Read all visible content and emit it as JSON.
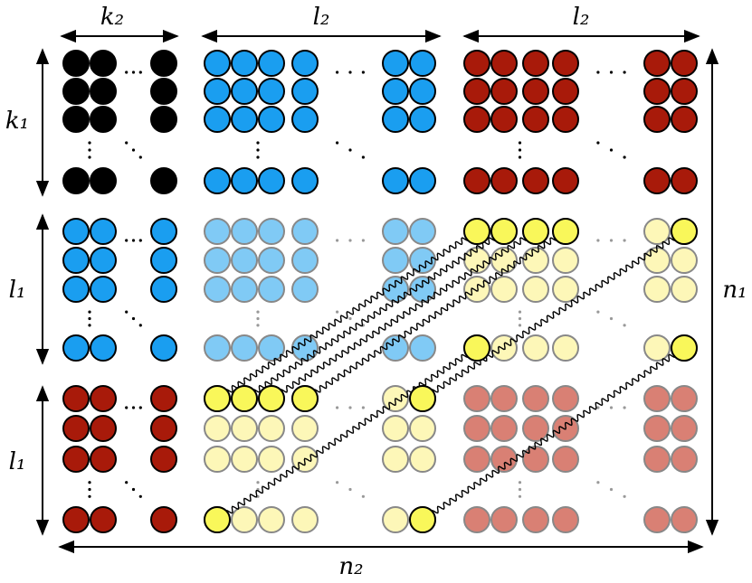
{
  "labels": {
    "top": [
      "k₂",
      "l₂",
      "l₂"
    ],
    "left": [
      "k₁",
      "l₁",
      "l₁"
    ],
    "right": "n₁",
    "bottom": "n₂"
  }
}
